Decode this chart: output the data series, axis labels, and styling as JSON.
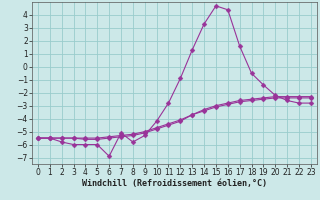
{
  "xlabel": "Windchill (Refroidissement éolien,°C)",
  "bg_color": "#cce8e8",
  "grid_color": "#99cccc",
  "line_color": "#993399",
  "x": [
    0,
    1,
    2,
    3,
    4,
    5,
    6,
    7,
    8,
    9,
    10,
    11,
    12,
    13,
    14,
    15,
    16,
    17,
    18,
    19,
    20,
    21,
    22,
    23
  ],
  "line1": [
    -5.5,
    -5.5,
    -5.8,
    -6.0,
    -6.0,
    -6.0,
    -6.9,
    -5.1,
    -5.8,
    -5.3,
    -4.2,
    -2.8,
    -0.9,
    1.3,
    3.3,
    4.7,
    4.4,
    1.6,
    -0.5,
    -1.4,
    -2.2,
    -2.6,
    -2.8,
    -2.8
  ],
  "line2": [
    -5.5,
    -5.5,
    -5.5,
    -5.5,
    -5.5,
    -5.5,
    -5.4,
    -5.3,
    -5.2,
    -5.0,
    -4.7,
    -4.4,
    -4.1,
    -3.7,
    -3.4,
    -3.1,
    -2.9,
    -2.7,
    -2.6,
    -2.5,
    -2.4,
    -2.4,
    -2.4,
    -2.4
  ],
  "line3": [
    -5.5,
    -5.5,
    -5.5,
    -5.5,
    -5.6,
    -5.6,
    -5.5,
    -5.4,
    -5.3,
    -5.1,
    -4.8,
    -4.5,
    -4.2,
    -3.7,
    -3.3,
    -3.0,
    -2.8,
    -2.6,
    -2.5,
    -2.4,
    -2.3,
    -2.3,
    -2.3,
    -2.3
  ],
  "ylim": [
    -7.5,
    5.0
  ],
  "xlim": [
    -0.5,
    23.5
  ],
  "yticks": [
    -7,
    -6,
    -5,
    -4,
    -3,
    -2,
    -1,
    0,
    1,
    2,
    3,
    4
  ],
  "xticks": [
    0,
    1,
    2,
    3,
    4,
    5,
    6,
    7,
    8,
    9,
    10,
    11,
    12,
    13,
    14,
    15,
    16,
    17,
    18,
    19,
    20,
    21,
    22,
    23
  ],
  "markersize": 2.5,
  "linewidth": 0.8,
  "tick_fontsize": 5.5,
  "xlabel_fontsize": 6.0
}
